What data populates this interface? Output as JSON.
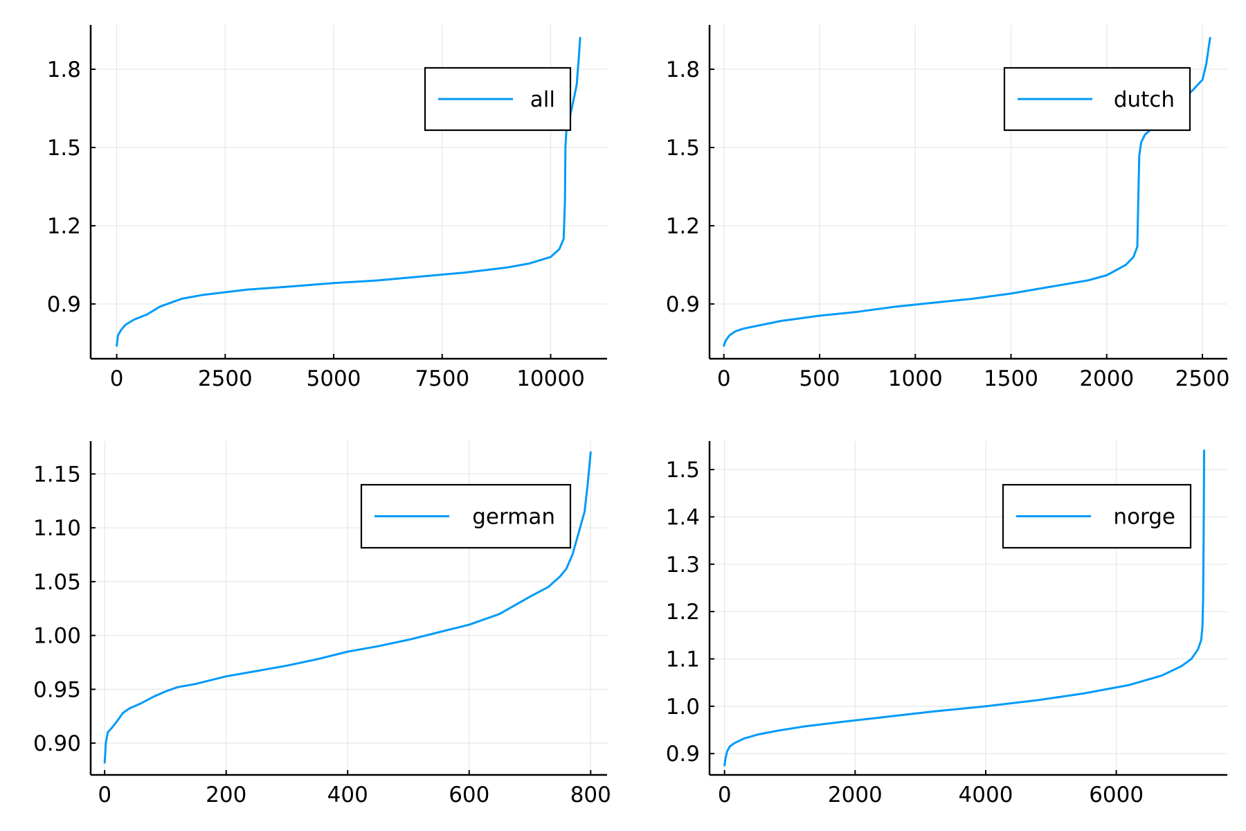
{
  "series_color": "#009af9",
  "chart_data": [
    {
      "type": "line",
      "title": "",
      "xlabel": "",
      "ylabel": "",
      "xlim": [
        -600,
        11300
      ],
      "ylim": [
        0.69,
        1.97
      ],
      "xticks": [
        0,
        2500,
        5000,
        7500,
        10000
      ],
      "xtick_labels": [
        "0",
        "2500",
        "5000",
        "7500",
        "10000"
      ],
      "yticks": [
        0.9,
        1.2,
        1.5,
        1.8
      ],
      "ytick_labels": [
        "0.9",
        "1.2",
        "1.5",
        "1.8"
      ],
      "grid": true,
      "legend_position": "top-right",
      "series": [
        {
          "name": "all",
          "x": [
            0,
            30,
            100,
            200,
            400,
            700,
            1000,
            1500,
            2000,
            2500,
            3000,
            4000,
            5000,
            6000,
            7000,
            8000,
            9000,
            9500,
            10000,
            10200,
            10300,
            10330,
            10340,
            10360,
            10420,
            10500,
            10600,
            10650,
            10680
          ],
          "y": [
            0.74,
            0.78,
            0.8,
            0.82,
            0.84,
            0.86,
            0.89,
            0.92,
            0.935,
            0.945,
            0.955,
            0.967,
            0.98,
            0.99,
            1.005,
            1.02,
            1.04,
            1.055,
            1.08,
            1.11,
            1.15,
            1.3,
            1.5,
            1.56,
            1.6,
            1.66,
            1.74,
            1.85,
            1.92
          ]
        }
      ]
    },
    {
      "type": "line",
      "title": "",
      "xlabel": "",
      "ylabel": "",
      "xlim": [
        -75,
        2630
      ],
      "ylim": [
        0.69,
        1.97
      ],
      "xticks": [
        0,
        500,
        1000,
        1500,
        2000,
        2500
      ],
      "xtick_labels": [
        "0",
        "500",
        "1000",
        "1500",
        "2000",
        "2500"
      ],
      "yticks": [
        0.9,
        1.2,
        1.5,
        1.8
      ],
      "ytick_labels": [
        "0.9",
        "1.2",
        "1.5",
        "1.8"
      ],
      "grid": true,
      "legend_position": "top-right",
      "series": [
        {
          "name": "dutch",
          "x": [
            0,
            10,
            30,
            60,
            100,
            200,
            300,
            500,
            700,
            900,
            1100,
            1300,
            1500,
            1700,
            1900,
            2000,
            2050,
            2100,
            2140,
            2160,
            2165,
            2170,
            2180,
            2200,
            2250,
            2350,
            2450,
            2500,
            2520,
            2540
          ],
          "y": [
            0.74,
            0.76,
            0.78,
            0.795,
            0.805,
            0.82,
            0.835,
            0.855,
            0.87,
            0.89,
            0.905,
            0.92,
            0.94,
            0.965,
            0.99,
            1.01,
            1.03,
            1.05,
            1.08,
            1.12,
            1.3,
            1.47,
            1.52,
            1.55,
            1.58,
            1.65,
            1.72,
            1.76,
            1.82,
            1.92
          ]
        }
      ]
    },
    {
      "type": "line",
      "title": "",
      "xlabel": "",
      "ylabel": "",
      "xlim": [
        -23,
        827
      ],
      "ylim": [
        0.8705,
        1.1805
      ],
      "xticks": [
        0,
        200,
        400,
        600,
        800
      ],
      "xtick_labels": [
        "0",
        "200",
        "400",
        "600",
        "800"
      ],
      "yticks": [
        0.9,
        0.95,
        1.0,
        1.05,
        1.1,
        1.15
      ],
      "ytick_labels": [
        "0.90",
        "0.95",
        "1.00",
        "1.05",
        "1.10",
        "1.15"
      ],
      "grid": true,
      "legend_position": "top-right",
      "series": [
        {
          "name": "german",
          "x": [
            0,
            2,
            5,
            10,
            20,
            30,
            40,
            60,
            80,
            100,
            120,
            150,
            200,
            250,
            300,
            350,
            400,
            450,
            500,
            550,
            600,
            650,
            700,
            730,
            750,
            760,
            770,
            780,
            790,
            795,
            800
          ],
          "y": [
            0.882,
            0.9,
            0.91,
            0.913,
            0.92,
            0.928,
            0.932,
            0.937,
            0.943,
            0.948,
            0.952,
            0.955,
            0.962,
            0.967,
            0.972,
            0.978,
            0.985,
            0.99,
            0.996,
            1.003,
            1.01,
            1.02,
            1.036,
            1.045,
            1.055,
            1.062,
            1.075,
            1.095,
            1.115,
            1.14,
            1.17
          ]
        }
      ]
    },
    {
      "type": "line",
      "title": "",
      "xlabel": "",
      "ylabel": "",
      "xlim": [
        -230,
        7700
      ],
      "ylim": [
        0.855,
        1.56
      ],
      "xticks": [
        0,
        2000,
        4000,
        6000
      ],
      "xtick_labels": [
        "0",
        "2000",
        "4000",
        "6000"
      ],
      "yticks": [
        0.9,
        1.0,
        1.1,
        1.2,
        1.3,
        1.4,
        1.5
      ],
      "ytick_labels": [
        "0.9",
        "1.0",
        "1.1",
        "1.2",
        "1.3",
        "1.4",
        "1.5"
      ],
      "grid": true,
      "legend_position": "top-right",
      "series": [
        {
          "name": "norge",
          "x": [
            0,
            15,
            40,
            80,
            150,
            300,
            500,
            800,
            1200,
            1800,
            2500,
            3200,
            4000,
            4800,
            5500,
            6200,
            6700,
            7000,
            7150,
            7250,
            7300,
            7320,
            7330,
            7340,
            7345
          ],
          "y": [
            0.875,
            0.89,
            0.905,
            0.915,
            0.922,
            0.932,
            0.94,
            0.948,
            0.957,
            0.967,
            0.978,
            0.989,
            1.0,
            1.013,
            1.027,
            1.045,
            1.065,
            1.085,
            1.1,
            1.12,
            1.14,
            1.17,
            1.23,
            1.4,
            1.54
          ]
        }
      ]
    }
  ]
}
